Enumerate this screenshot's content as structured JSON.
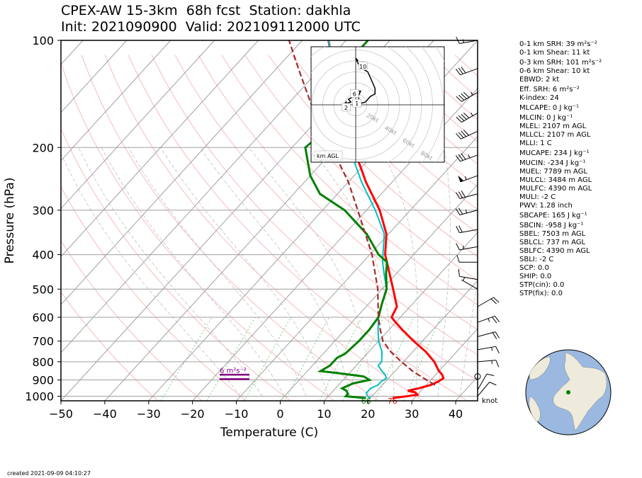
{
  "title": {
    "line1": "CPEX-AW 15-3km  68h fcst  Station: dakhla",
    "line2": "Init: 2021090900  Valid: 202109112000 UTC"
  },
  "footer": "created 2021-09-09 04:10:27",
  "chart_data": {
    "type": "skew-t",
    "xlabel": "Temperature (C)",
    "ylabel": "Pressure (hPa)",
    "xlim": [
      -50,
      45
    ],
    "ylim": [
      1030,
      100
    ],
    "log_pressure": true,
    "x_ticks": [
      -50,
      -40,
      -30,
      -20,
      -10,
      0,
      10,
      20,
      30,
      40
    ],
    "y_ticks": [
      100,
      200,
      300,
      400,
      500,
      600,
      700,
      800,
      900,
      1000
    ],
    "colors": {
      "temperature": "#ff0000",
      "dewpoint": "#008000",
      "virtual_temperature": "#00c0c0",
      "parcel": "#a52a2a",
      "isotherm": "#a0a0a0",
      "dry_adiabat": "#f4a0a0",
      "moist_adiabat": "#c0c0c0",
      "mixing_ratio": "#60c060",
      "srh_layer": "#800080"
    },
    "series": [
      {
        "name": "temperature",
        "points": [
          [
            1012,
            25
          ],
          [
            1000,
            28
          ],
          [
            990,
            30
          ],
          [
            975,
            29
          ],
          [
            965,
            27
          ],
          [
            950,
            29
          ],
          [
            930,
            31
          ],
          [
            910,
            32
          ],
          [
            890,
            32.5
          ],
          [
            870,
            31.5
          ],
          [
            850,
            30
          ],
          [
            800,
            27
          ],
          [
            750,
            23
          ],
          [
            700,
            18
          ],
          [
            650,
            13
          ],
          [
            620,
            10
          ],
          [
            600,
            8
          ],
          [
            560,
            7
          ],
          [
            500,
            2.5
          ],
          [
            400,
            -6.5
          ],
          [
            350,
            -10.5
          ],
          [
            300,
            -17
          ],
          [
            250,
            -26
          ],
          [
            200,
            -36
          ],
          [
            170,
            -43
          ],
          [
            150,
            -48
          ],
          [
            120,
            -57
          ],
          [
            100,
            -64
          ]
        ]
      },
      {
        "name": "virtual_temperature",
        "points": [
          [
            1012,
            20
          ],
          [
            1000,
            19
          ],
          [
            980,
            18
          ],
          [
            950,
            18
          ],
          [
            930,
            19
          ],
          [
            910,
            19
          ],
          [
            890,
            19.5
          ],
          [
            870,
            18.5
          ],
          [
            850,
            17
          ],
          [
            820,
            15
          ],
          [
            800,
            15
          ],
          [
            750,
            13
          ],
          [
            700,
            10
          ],
          [
            650,
            7.5
          ],
          [
            600,
            5
          ],
          [
            550,
            3
          ],
          [
            500,
            1
          ],
          [
            450,
            -3
          ],
          [
            420,
            -5.5
          ],
          [
            400,
            -7
          ],
          [
            350,
            -11
          ],
          [
            300,
            -18
          ],
          [
            250,
            -27
          ],
          [
            200,
            -37
          ],
          [
            170,
            -44
          ],
          [
            150,
            -49
          ],
          [
            120,
            -57
          ],
          [
            100,
            -64
          ]
        ]
      },
      {
        "name": "dewpoint",
        "points": [
          [
            1012,
            19
          ],
          [
            1000,
            14
          ],
          [
            985,
            14
          ],
          [
            965,
            13
          ],
          [
            950,
            11.5
          ],
          [
            920,
            13
          ],
          [
            900,
            16
          ],
          [
            880,
            14
          ],
          [
            860,
            7
          ],
          [
            850,
            3
          ],
          [
            820,
            4
          ],
          [
            800,
            4
          ],
          [
            780,
            4
          ],
          [
            760,
            5
          ],
          [
            700,
            5.5
          ],
          [
            650,
            5.5
          ],
          [
            600,
            5
          ],
          [
            550,
            3
          ],
          [
            500,
            1
          ],
          [
            450,
            -2.5
          ],
          [
            420,
            -4.5
          ],
          [
            400,
            -8
          ],
          [
            350,
            -15
          ],
          [
            300,
            -25
          ],
          [
            270,
            -34
          ],
          [
            240,
            -40
          ],
          [
            200,
            -47
          ],
          [
            180,
            -46
          ],
          [
            150,
            -50
          ],
          [
            130,
            -54
          ],
          [
            115,
            -55
          ],
          [
            100,
            -55
          ]
        ]
      },
      {
        "name": "parcel",
        "points": [
          [
            930,
            32
          ],
          [
            900,
            29
          ],
          [
            850,
            24
          ],
          [
            800,
            19.5
          ],
          [
            750,
            15
          ],
          [
            700,
            11
          ],
          [
            650,
            8
          ],
          [
            600,
            5
          ],
          [
            500,
            -1
          ],
          [
            400,
            -9.5
          ],
          [
            300,
            -22
          ],
          [
            250,
            -30
          ],
          [
            200,
            -41
          ],
          [
            150,
            -55
          ],
          [
            120,
            -65
          ],
          [
            100,
            -73
          ]
        ]
      }
    ],
    "surface_labels": [
      {
        "text": "66",
        "color": "#008000",
        "x": 19
      },
      {
        "text": "76",
        "color": "#ff0000",
        "x": 25
      }
    ],
    "srh_label": "6 m²s⁻²",
    "wind_unit": "knot",
    "wind_barbs": [
      {
        "p": 100,
        "speed": 15,
        "dir": 260
      },
      {
        "p": 120,
        "speed": 30,
        "dir": 250
      },
      {
        "p": 140,
        "speed": 45,
        "dir": 240
      },
      {
        "p": 160,
        "speed": 45,
        "dir": 240
      },
      {
        "p": 180,
        "speed": 40,
        "dir": 245
      },
      {
        "p": 210,
        "speed": 35,
        "dir": 250
      },
      {
        "p": 240,
        "speed": 55,
        "dir": 250
      },
      {
        "p": 270,
        "speed": 30,
        "dir": 255
      },
      {
        "p": 300,
        "speed": 25,
        "dir": 255
      },
      {
        "p": 340,
        "speed": 20,
        "dir": 260
      },
      {
        "p": 380,
        "speed": 15,
        "dir": 260
      },
      {
        "p": 420,
        "speed": 10,
        "dir": 270
      },
      {
        "p": 470,
        "speed": 10,
        "dir": 280
      },
      {
        "p": 500,
        "speed": 5,
        "dir": 300
      },
      {
        "p": 560,
        "speed": 20,
        "dir": 60
      },
      {
        "p": 620,
        "speed": 25,
        "dir": 70
      },
      {
        "p": 680,
        "speed": 20,
        "dir": 75
      },
      {
        "p": 740,
        "speed": 15,
        "dir": 80
      },
      {
        "p": 800,
        "speed": 15,
        "dir": 85
      },
      {
        "p": 880,
        "speed": 0,
        "dir": 0
      },
      {
        "p": 960,
        "speed": 10,
        "dir": 30
      },
      {
        "p": 1000,
        "speed": 10,
        "dir": 40
      }
    ],
    "hodograph": {
      "radii_kt": [
        10,
        20,
        30,
        40,
        50,
        60,
        70,
        80,
        90
      ],
      "ring_labels": [
        "20kt",
        "40kt",
        "60kt",
        "80kt"
      ],
      "height_labels": [
        {
          "text": "10",
          "u": 3,
          "v": 14
        },
        {
          "text": "6",
          "u": -0.5,
          "v": 4
        },
        {
          "text": "2",
          "u": -4,
          "v": -1
        },
        {
          "text": "1",
          "u": 0.5,
          "v": 0.5
        }
      ],
      "legend": "km AGL",
      "trace": [
        [
          -5,
          0
        ],
        [
          -4,
          1
        ],
        [
          -4,
          0.5
        ],
        [
          -2,
          1
        ],
        [
          -3,
          2
        ],
        [
          -1,
          3
        ],
        [
          0,
          4
        ],
        [
          0,
          5
        ],
        [
          2,
          5
        ],
        [
          1,
          3
        ],
        [
          2,
          0.5
        ],
        [
          4,
          1
        ],
        [
          6,
          3
        ],
        [
          8,
          4
        ],
        [
          8,
          6
        ],
        [
          7,
          8
        ],
        [
          6,
          10
        ],
        [
          5,
          12
        ],
        [
          3,
          13
        ],
        [
          1,
          15
        ],
        [
          0,
          17
        ],
        [
          1,
          16
        ]
      ]
    }
  },
  "indices": [
    "0-1 km SRH: 39 m²s⁻²",
    "0-1 km Shear: 11 kt",
    "0-3 km SRH: 101 m²s⁻²",
    "0-6 km Shear: 10 kt",
    "EBWD: 2 kt",
    "Eff. SRH: 6 m²s⁻²",
    "K-index: 24",
    "MLCAPE: 0 J kg⁻¹",
    "MLCIN: 0 J kg⁻¹",
    "MLEL: 2107 m AGL",
    "MLLCL: 2107 m AGL",
    "MLLI: 1 C",
    "MUCAPE: 234 J kg⁻¹",
    "MUCIN: -234 J kg⁻¹",
    "MUEL: 7789 m AGL",
    "MULCL: 3484 m AGL",
    "MULFC: 4390 m AGL",
    "MULI: -2 C",
    "PWV: 1.28 inch",
    "SBCAPE: 165 J kg⁻¹",
    "SBCIN: -958 J kg⁻¹",
    "SBEL: 7503 m AGL",
    "SBLCL: 737 m AGL",
    "SBLFC: 4390 m AGL",
    "SBLI: -2 C",
    "SCP: 0.0",
    "SHIP: 0.0",
    "STP(cin): 0.0",
    "STP(fix): 0.0"
  ],
  "globe": {
    "ocean_color": "#9ab8e0",
    "land_color": "#efebdc",
    "station_color": "#008000"
  }
}
